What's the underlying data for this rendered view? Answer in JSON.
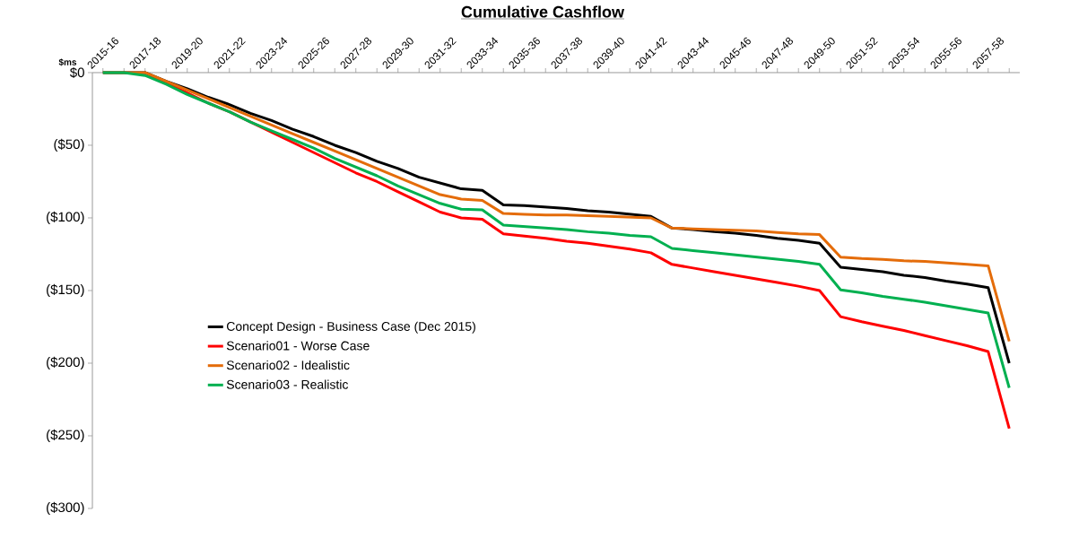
{
  "chart_data": {
    "type": "line",
    "title": "Cumulative Cashflow",
    "ylabel": "$ms",
    "categories": [
      "2015-16",
      null,
      "2017-18",
      null,
      "2019-20",
      null,
      "2021-22",
      null,
      "2023-24",
      null,
      "2025-26",
      null,
      "2027-28",
      null,
      "2029-30",
      null,
      "2031-32",
      null,
      "2033-34",
      null,
      "2035-36",
      null,
      "2037-38",
      null,
      "2039-40",
      null,
      "2041-42",
      null,
      "2043-44",
      null,
      "2045-46",
      null,
      "2047-48",
      null,
      "2049-50",
      null,
      "2051-52",
      null,
      "2053-54",
      null,
      "2055-56",
      null,
      "2057-58",
      null
    ],
    "series": [
      {
        "name": "Concept Design - Business Case (Dec 2015)",
        "color": "#000000",
        "values": [
          0,
          0,
          0,
          -6,
          -11,
          -17,
          -22,
          -28,
          -33,
          -39,
          -44,
          -50,
          -55,
          -61,
          -66,
          -72,
          -76,
          -80,
          -81,
          -91,
          -91.5,
          -92.5,
          -93.5,
          -95,
          -96,
          -97.5,
          -99,
          -107,
          -108,
          -109.5,
          -110.5,
          -112,
          -114,
          -115.5,
          -117.5,
          -134,
          -135.5,
          -137,
          -139.5,
          -141,
          -143.5,
          -145.5,
          -148,
          -200
        ]
      },
      {
        "name": "Scenario01 - Worse Case",
        "color": "#ff0000",
        "values": [
          null,
          null,
          0,
          -7,
          -14,
          -21,
          -27,
          -34,
          -41,
          -48,
          -55,
          -62,
          -69,
          -75,
          -82,
          -89,
          -96,
          -100,
          -101,
          -111,
          -112.5,
          -114,
          -116,
          -117.5,
          -119.5,
          -121.5,
          -124,
          -132,
          -134.5,
          -137,
          -139.5,
          -142,
          -144.5,
          -147,
          -150,
          -168,
          -171.5,
          -174.5,
          -177.5,
          -181,
          -184.5,
          -188,
          -192,
          -245
        ]
      },
      {
        "name": "Scenario02 - Idealistic",
        "color": "#e46c0a",
        "values": [
          0,
          0,
          0,
          -6,
          -12,
          -18,
          -24,
          -30,
          -36,
          -42,
          -48,
          -54,
          -60,
          -66,
          -72,
          -78,
          -84,
          -87,
          -88,
          -97,
          -97.5,
          -98,
          -98,
          -98.5,
          -99,
          -99.5,
          -100,
          -107,
          -107.5,
          -108,
          -108.5,
          -109,
          -110,
          -111,
          -111.5,
          -127,
          -128,
          -128.5,
          -129.5,
          -130,
          -131,
          -132,
          -133,
          -185
        ]
      },
      {
        "name": "Scenario03 - Realistic",
        "color": "#00b050",
        "values": [
          0,
          0,
          -2,
          -8,
          -15,
          -21,
          -27,
          -34,
          -40,
          -46,
          -52,
          -59,
          -65,
          -71,
          -78,
          -84,
          -90,
          -94,
          -94.5,
          -105,
          -106,
          -107,
          -108,
          -109.5,
          -110.5,
          -112,
          -113,
          -121,
          -122.5,
          -124,
          -125.5,
          -127,
          -128.5,
          -130,
          -132,
          -149.5,
          -151.5,
          -154,
          -156,
          -158,
          -160.5,
          -163,
          -165.5,
          -217
        ]
      }
    ],
    "ylim": [
      -300,
      0
    ],
    "yticks": [
      {
        "value": 0,
        "label": "$0"
      },
      {
        "value": -50,
        "label": "($50)"
      },
      {
        "value": -100,
        "label": "($100)"
      },
      {
        "value": -150,
        "label": "($150)"
      },
      {
        "value": -200,
        "label": "($200)"
      },
      {
        "value": -250,
        "label": "($250)"
      },
      {
        "value": -300,
        "label": "($300)"
      }
    ],
    "grid": false,
    "legend": "left",
    "marker": "none",
    "line_style": "solid"
  }
}
